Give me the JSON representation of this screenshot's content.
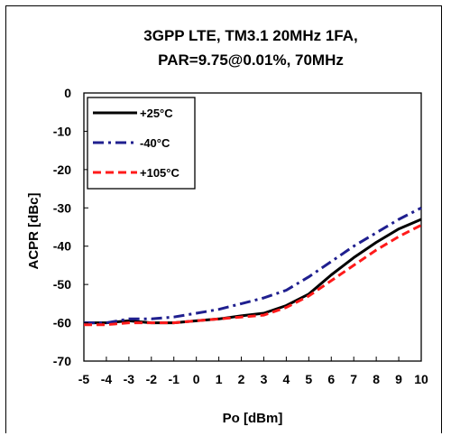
{
  "chart_data": {
    "type": "line",
    "title": [
      "3GPP LTE, TM3.1 20MHz 1FA,",
      "PAR=9.75@0.01%, 70MHz"
    ],
    "xlabel": "Po [dBm]",
    "ylabel": "ACPR [dBc]",
    "xlim": [
      -5,
      10
    ],
    "ylim": [
      -70,
      0
    ],
    "x_ticks": [
      -5,
      -4,
      -3,
      -2,
      -1,
      0,
      1,
      2,
      3,
      4,
      5,
      6,
      7,
      8,
      9,
      10
    ],
    "y_ticks": [
      0,
      -10,
      -20,
      -30,
      -40,
      -50,
      -60,
      -70
    ],
    "grid": false,
    "legend_position": "top-left",
    "x": [
      -5,
      -4,
      -3,
      -2,
      -1,
      0,
      1,
      2,
      3,
      4,
      5,
      6,
      7,
      8,
      9,
      10
    ],
    "series": [
      {
        "name": "+25°C",
        "color": "#000000",
        "dash": "solid",
        "values": [
          -60,
          -60,
          -59.5,
          -60,
          -60,
          -59.5,
          -59,
          -58.2,
          -57.5,
          -55.5,
          -52.5,
          -47.5,
          -43,
          -39,
          -35.5,
          -33
        ]
      },
      {
        "name": "-40°C",
        "color": "#1f1f8f",
        "dash": "dashdot",
        "values": [
          -60,
          -60,
          -59,
          -59,
          -58.5,
          -57.5,
          -56.5,
          -55,
          -53.5,
          -51.5,
          -48,
          -44,
          -40,
          -36.5,
          -33,
          -30
        ]
      },
      {
        "name": "+105°C",
        "color": "#ff1a1a",
        "dash": "dash",
        "values": [
          -60.5,
          -60.5,
          -60,
          -60,
          -60,
          -59.5,
          -59,
          -58.5,
          -58,
          -56,
          -53,
          -49,
          -45,
          -41,
          -37.5,
          -34.5
        ]
      }
    ]
  }
}
